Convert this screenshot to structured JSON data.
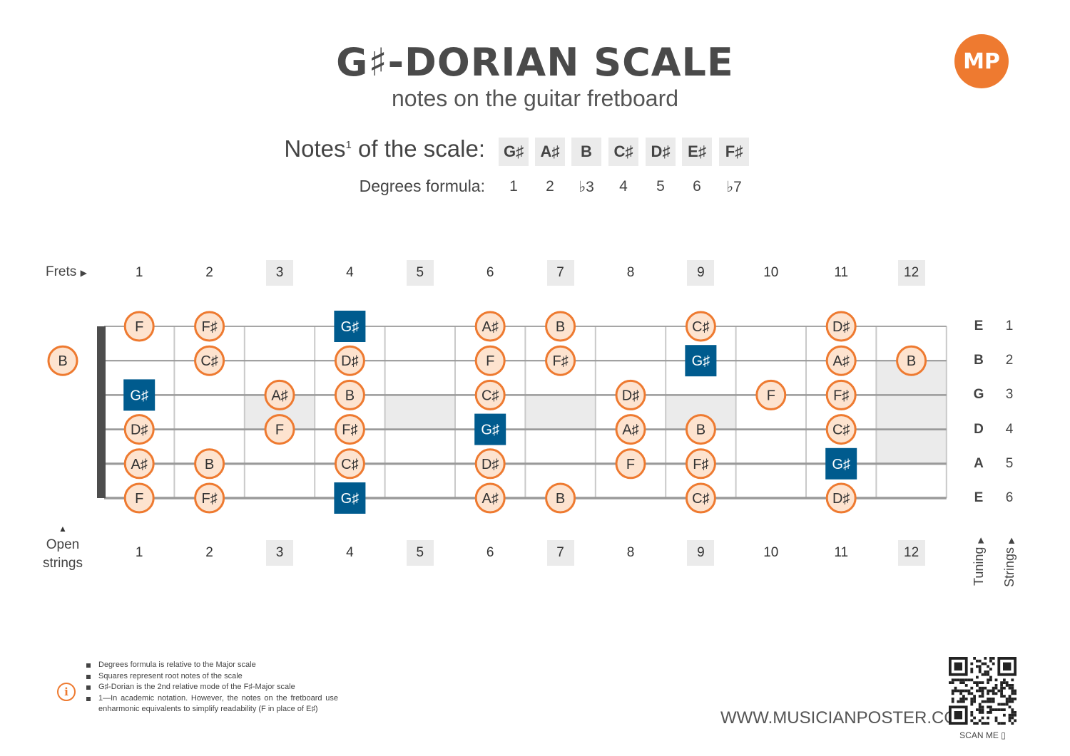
{
  "title": "G♯-DORIAN SCALE",
  "subtitle": "notes on the guitar fretboard",
  "logo_text": "MP",
  "scale": {
    "notes_label": "Notes",
    "notes_label_sup": "1",
    "notes_label_suffix": " of the scale:",
    "notes": [
      "G♯",
      "A♯",
      "B",
      "C♯",
      "D♯",
      "E♯",
      "F♯"
    ],
    "degrees_label": "Degrees formula:",
    "degrees": [
      "1",
      "2",
      "♭3",
      "4",
      "5",
      "6",
      "♭7"
    ]
  },
  "fretboard": {
    "frets_label": "Frets",
    "open_label_1": "Open",
    "open_label_2": "strings",
    "frets": [
      "1",
      "2",
      "3",
      "4",
      "5",
      "6",
      "7",
      "8",
      "9",
      "10",
      "11",
      "12"
    ],
    "shaded_frets": [
      "3",
      "5",
      "7",
      "9",
      "12"
    ],
    "tuning": [
      "E",
      "B",
      "G",
      "D",
      "A",
      "E"
    ],
    "string_numbers": [
      "1",
      "2",
      "3",
      "4",
      "5",
      "6"
    ],
    "tuning_label": "Tuning",
    "strings_label": "Strings",
    "accent_color": "#ee7a30",
    "note_fill": "#fde3cf",
    "root_color": "#005b8e",
    "open_notes": [
      {
        "string": 2,
        "note": "B",
        "root": false
      }
    ],
    "notes": [
      {
        "string": 1,
        "fret": 1,
        "note": "F",
        "root": false
      },
      {
        "string": 1,
        "fret": 2,
        "note": "F♯",
        "root": false
      },
      {
        "string": 1,
        "fret": 4,
        "note": "G♯",
        "root": true
      },
      {
        "string": 1,
        "fret": 6,
        "note": "A♯",
        "root": false
      },
      {
        "string": 1,
        "fret": 7,
        "note": "B",
        "root": false
      },
      {
        "string": 1,
        "fret": 9,
        "note": "C♯",
        "root": false
      },
      {
        "string": 1,
        "fret": 11,
        "note": "D♯",
        "root": false
      },
      {
        "string": 2,
        "fret": 2,
        "note": "C♯",
        "root": false
      },
      {
        "string": 2,
        "fret": 4,
        "note": "D♯",
        "root": false
      },
      {
        "string": 2,
        "fret": 6,
        "note": "F",
        "root": false
      },
      {
        "string": 2,
        "fret": 7,
        "note": "F♯",
        "root": false
      },
      {
        "string": 2,
        "fret": 9,
        "note": "G♯",
        "root": true
      },
      {
        "string": 2,
        "fret": 11,
        "note": "A♯",
        "root": false
      },
      {
        "string": 2,
        "fret": 12,
        "note": "B",
        "root": false
      },
      {
        "string": 3,
        "fret": 1,
        "note": "G♯",
        "root": true
      },
      {
        "string": 3,
        "fret": 3,
        "note": "A♯",
        "root": false
      },
      {
        "string": 3,
        "fret": 4,
        "note": "B",
        "root": false
      },
      {
        "string": 3,
        "fret": 6,
        "note": "C♯",
        "root": false
      },
      {
        "string": 3,
        "fret": 8,
        "note": "D♯",
        "root": false
      },
      {
        "string": 3,
        "fret": 10,
        "note": "F",
        "root": false
      },
      {
        "string": 3,
        "fret": 11,
        "note": "F♯",
        "root": false
      },
      {
        "string": 4,
        "fret": 1,
        "note": "D♯",
        "root": false
      },
      {
        "string": 4,
        "fret": 3,
        "note": "F",
        "root": false
      },
      {
        "string": 4,
        "fret": 4,
        "note": "F♯",
        "root": false
      },
      {
        "string": 4,
        "fret": 6,
        "note": "G♯",
        "root": true
      },
      {
        "string": 4,
        "fret": 8,
        "note": "A♯",
        "root": false
      },
      {
        "string": 4,
        "fret": 9,
        "note": "B",
        "root": false
      },
      {
        "string": 4,
        "fret": 11,
        "note": "C♯",
        "root": false
      },
      {
        "string": 5,
        "fret": 1,
        "note": "A♯",
        "root": false
      },
      {
        "string": 5,
        "fret": 2,
        "note": "B",
        "root": false
      },
      {
        "string": 5,
        "fret": 4,
        "note": "C♯",
        "root": false
      },
      {
        "string": 5,
        "fret": 6,
        "note": "D♯",
        "root": false
      },
      {
        "string": 5,
        "fret": 8,
        "note": "F",
        "root": false
      },
      {
        "string": 5,
        "fret": 9,
        "note": "F♯",
        "root": false
      },
      {
        "string": 5,
        "fret": 11,
        "note": "G♯",
        "root": true
      },
      {
        "string": 6,
        "fret": 1,
        "note": "F",
        "root": false
      },
      {
        "string": 6,
        "fret": 2,
        "note": "F♯",
        "root": false
      },
      {
        "string": 6,
        "fret": 4,
        "note": "G♯",
        "root": true
      },
      {
        "string": 6,
        "fret": 6,
        "note": "A♯",
        "root": false
      },
      {
        "string": 6,
        "fret": 7,
        "note": "B",
        "root": false
      },
      {
        "string": 6,
        "fret": 9,
        "note": "C♯",
        "root": false
      },
      {
        "string": 6,
        "fret": 11,
        "note": "D♯",
        "root": false
      }
    ]
  },
  "footnotes": [
    "Degrees formula is relative to the Major scale",
    "Squares represent root notes of the scale",
    "G♯-Dorian is the 2nd relative mode of the F♯-Major scale",
    "1—In academic notation. However, the notes on the fretboard use enharmonic equivalents to simplify readability (F in place of E♯)"
  ],
  "website": "WWW.MUSICIANPOSTER.COM",
  "scan_label": "SCAN ME"
}
